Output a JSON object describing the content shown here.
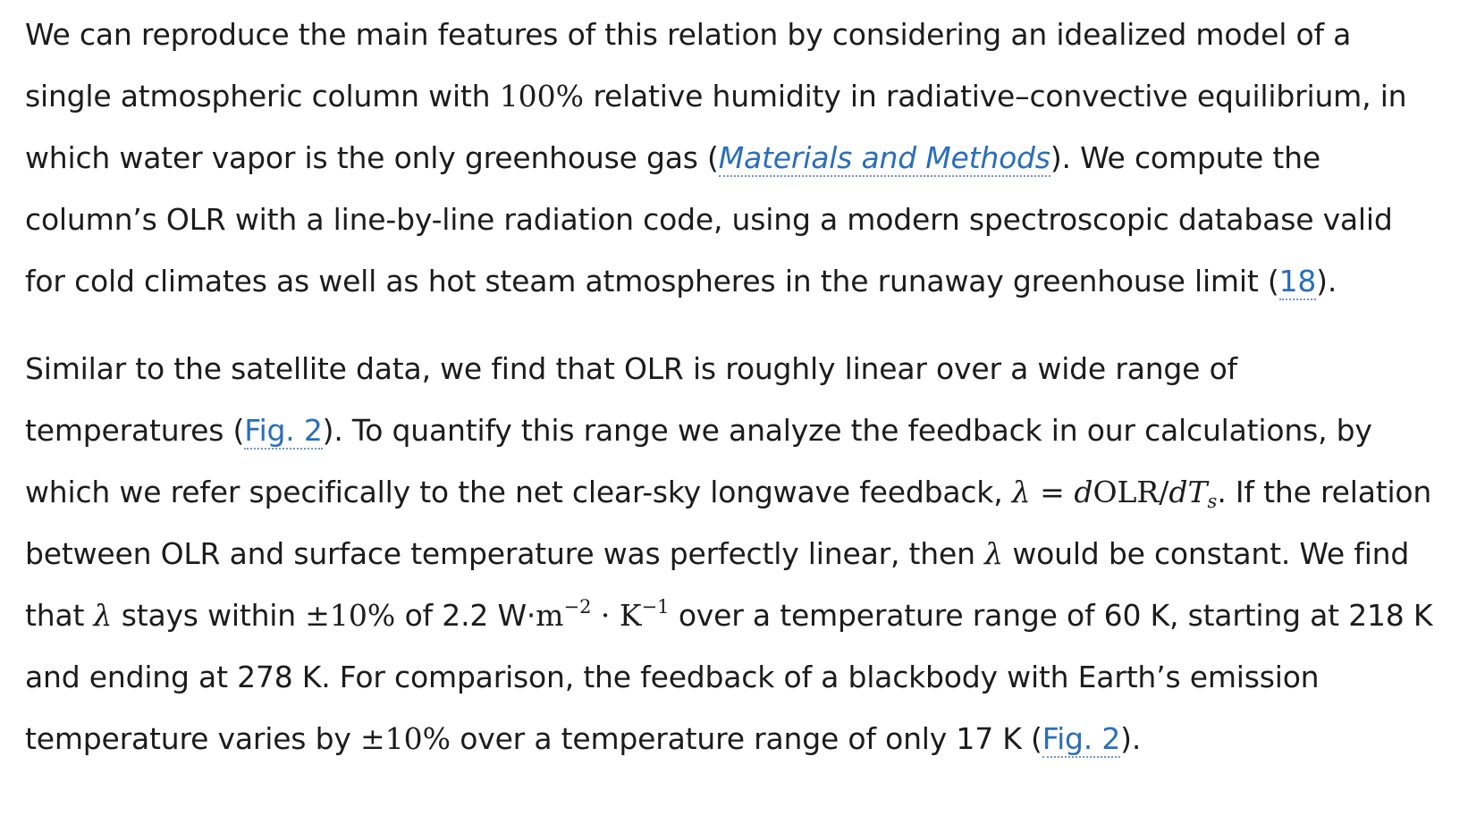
{
  "paragraph_1": {
    "line_1": "We can reproduce the main features of this relation by considering an idealized model of a",
    "line_2_a": "single atmospheric column with ",
    "line_2_math": "100%",
    "line_2_b": " relative humidity in radiative–convective equilibrium, in",
    "line_3_a": "which water vapor is the only greenhouse gas (",
    "line_3_link": "Materials and Methods",
    "line_3_b": "). We compute the",
    "line_4": "column’s OLR with a line-by-line radiation code, using a modern spectroscopic database valid",
    "line_5_a": "for cold climates as well as hot steam atmospheres in the runaway greenhouse limit (",
    "line_5_link": "18",
    "line_5_b": ")."
  },
  "paragraph_2": {
    "line_1": "Similar to the satellite data, we find that OLR is roughly linear over a wide range of",
    "line_2_a": "temperatures (",
    "line_2_link": "Fig. 2",
    "line_2_b": "). To quantify this range we analyze the feedback in our calculations, by",
    "line_3_a": "which we refer specifically to the net clear-sky longwave feedback, ",
    "line_3_math_a": "λ = d",
    "line_3_math_b": "OLR/",
    "line_3_math_c": "dT",
    "line_3_math_sub": "s",
    "line_3_b": ". If the relation",
    "line_4_a": "between OLR and surface temperature was perfectly linear, then ",
    "line_4_math": "λ",
    "line_4_b": " would be constant. We find",
    "line_5_a": "that ",
    "line_5_math_1": "λ",
    "line_5_b": " stays within ",
    "line_5_math_2": "±10%",
    "line_5_c": " of 2.2 W·",
    "line_5_unit_m": "m",
    "line_5_sup_1": "−2",
    "line_5_unit_dot": " · K",
    "line_5_sup_2": "−1",
    "line_5_d": " over a temperature range of 60 K, starting at 218 K",
    "line_6": "and ending at 278 K. For comparison, the feedback of a blackbody with Earth’s emission",
    "line_7_a": "temperature varies by ",
    "line_7_math": "±10%",
    "line_7_b": " over a temperature range of only 17 K (",
    "line_7_link": "Fig. 2",
    "line_7_c": ")."
  }
}
